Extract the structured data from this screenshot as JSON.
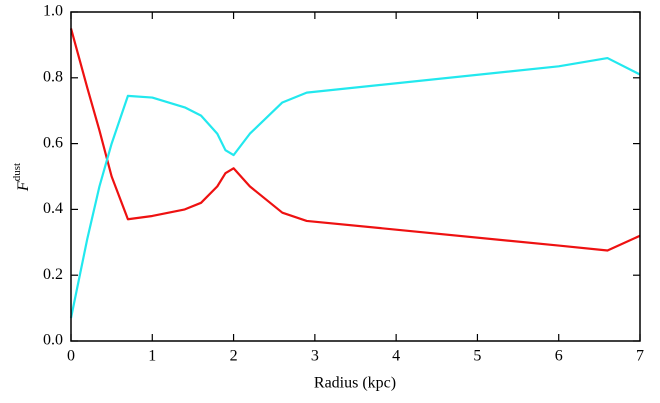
{
  "chart_data": {
    "type": "line",
    "xlabel": "Radius (kpc)",
    "ylabel": {
      "base": "F",
      "sup": "dust"
    },
    "x": [
      0,
      0.2,
      0.35,
      0.5,
      0.7,
      1.0,
      1.4,
      1.6,
      1.8,
      1.9,
      2.0,
      2.2,
      2.6,
      2.9,
      6.0,
      6.6,
      7.0
    ],
    "series": [
      {
        "color": "#ee1111",
        "values": [
          0.95,
          0.77,
          0.64,
          0.5,
          0.37,
          0.38,
          0.4,
          0.42,
          0.47,
          0.51,
          0.525,
          0.47,
          0.39,
          0.365,
          0.29,
          0.275,
          0.32
        ]
      },
      {
        "color": "#22e8ee",
        "values": [
          0.07,
          0.31,
          0.47,
          0.6,
          0.745,
          0.74,
          0.71,
          0.685,
          0.63,
          0.58,
          0.565,
          0.63,
          0.725,
          0.755,
          0.835,
          0.86,
          0.81
        ]
      }
    ],
    "xlim": [
      0,
      7
    ],
    "ylim": [
      0,
      1
    ],
    "xticks": [
      0,
      1,
      2,
      3,
      4,
      5,
      6,
      7
    ],
    "yticks": [
      {
        "value": 0,
        "label": "0.0"
      },
      0.2,
      0.4,
      0.6,
      0.8,
      {
        "value": 1,
        "label": "1.0"
      }
    ]
  }
}
